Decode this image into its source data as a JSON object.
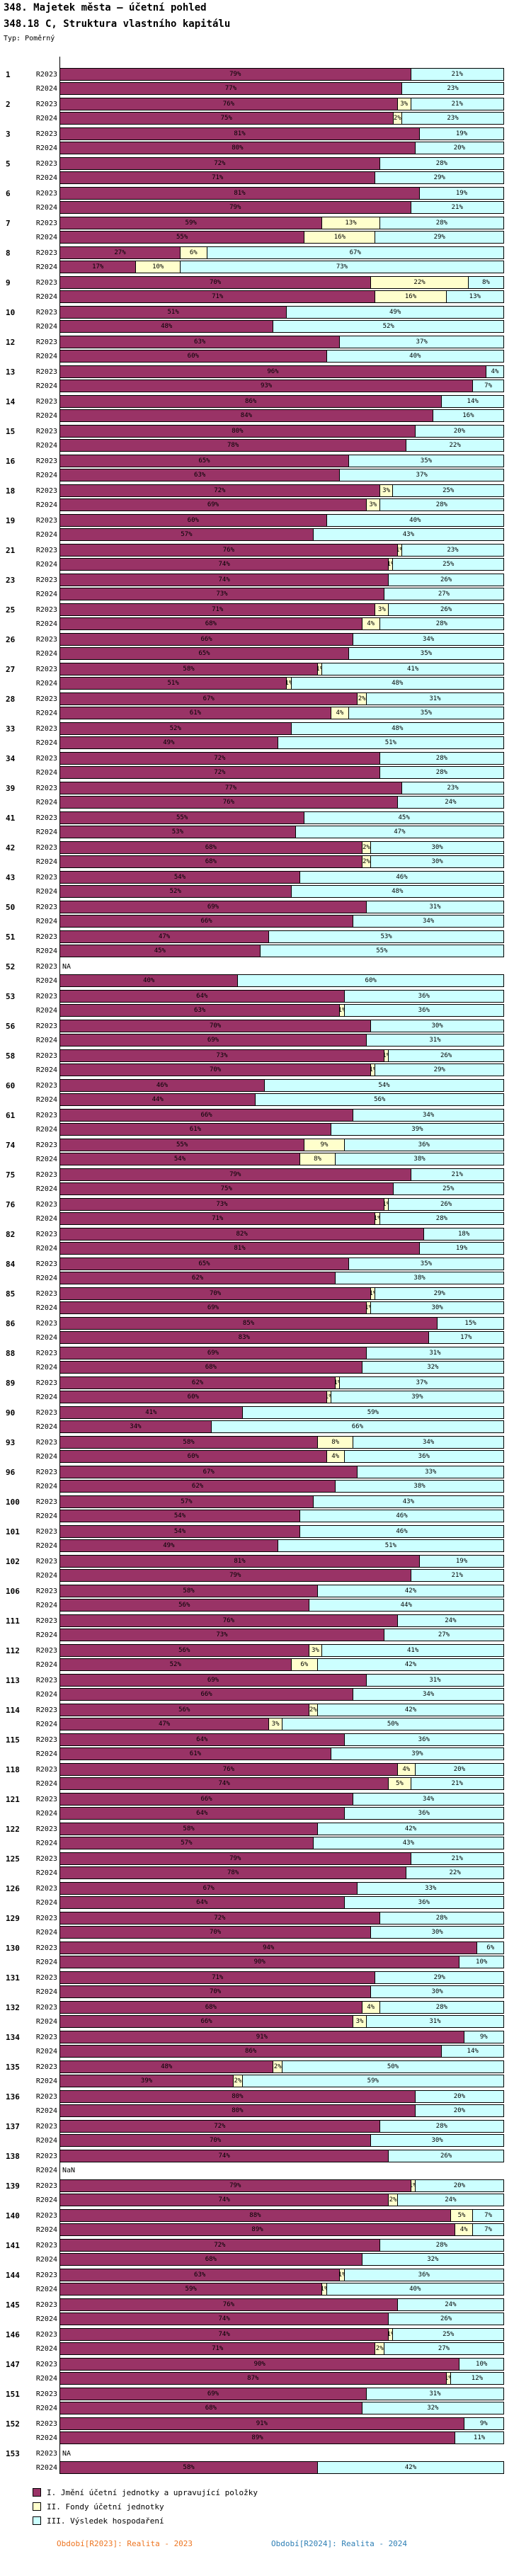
{
  "header": {
    "title": "348. Majetek města – účetní pohled",
    "subtitle": "348.18 C, Struktura vlastního kapitálu",
    "type_label": "Typ: Poměrný"
  },
  "chart_data": {
    "type": "bar",
    "orientation": "horizontal",
    "stacked": true,
    "unit": "%",
    "x_max": 100,
    "series_labels": [
      "R2023",
      "R2024"
    ],
    "segment_names": [
      "I. Jmění účetní jednotky a upravující položky",
      "II. Fondy účetní jednotky",
      "III. Výsledek hospodaření"
    ],
    "colors": {
      "segment_1": "#993366",
      "segment_2": "#FFFFCC",
      "segment_3": "#CCFFFF",
      "border": "#000000"
    },
    "rows": [
      {
        "num": "1",
        "r2023": [
          79,
          0,
          21
        ],
        "r2024": [
          77,
          0,
          23
        ]
      },
      {
        "num": "2",
        "r2023": [
          76,
          3,
          21
        ],
        "r2024": [
          75,
          2,
          23
        ]
      },
      {
        "num": "3",
        "r2023": [
          81,
          0,
          19
        ],
        "r2024": [
          80,
          0,
          20
        ]
      },
      {
        "num": "5",
        "r2023": [
          72,
          0,
          28
        ],
        "r2024": [
          71,
          0,
          29
        ]
      },
      {
        "num": "6",
        "r2023": [
          81,
          0,
          19
        ],
        "r2024": [
          79,
          0,
          21
        ]
      },
      {
        "num": "7",
        "r2023": [
          59,
          13,
          28
        ],
        "r2024": [
          55,
          16,
          29
        ]
      },
      {
        "num": "8",
        "r2023": [
          27,
          6,
          67
        ],
        "r2024": [
          17,
          10,
          73
        ]
      },
      {
        "num": "9",
        "r2023": [
          70,
          22,
          8
        ],
        "r2024": [
          71,
          16,
          13
        ]
      },
      {
        "num": "10",
        "r2023": [
          51,
          0,
          49
        ],
        "r2024": [
          48,
          0,
          52
        ]
      },
      {
        "num": "12",
        "r2023": [
          63,
          0,
          37
        ],
        "r2024": [
          60,
          0,
          40
        ]
      },
      {
        "num": "13",
        "r2023": [
          96,
          0,
          4
        ],
        "r2024": [
          93,
          0,
          7
        ]
      },
      {
        "num": "14",
        "r2023": [
          86,
          0,
          14
        ],
        "r2024": [
          84,
          0,
          16
        ]
      },
      {
        "num": "15",
        "r2023": [
          80,
          0,
          20
        ],
        "r2024": [
          78,
          0,
          22
        ]
      },
      {
        "num": "16",
        "r2023": [
          65,
          0,
          35
        ],
        "r2024": [
          63,
          0,
          37
        ]
      },
      {
        "num": "18",
        "r2023": [
          72,
          3,
          25
        ],
        "r2024": [
          69,
          3,
          28
        ]
      },
      {
        "num": "19",
        "r2023": [
          60,
          0,
          40
        ],
        "r2024": [
          57,
          0,
          43
        ]
      },
      {
        "num": "21",
        "r2023": [
          76,
          1,
          23
        ],
        "r2024": [
          74,
          1,
          25
        ]
      },
      {
        "num": "23",
        "r2023": [
          74,
          0,
          26
        ],
        "r2024": [
          73,
          0,
          27
        ]
      },
      {
        "num": "25",
        "r2023": [
          71,
          3,
          26
        ],
        "r2024": [
          68,
          4,
          28
        ]
      },
      {
        "num": "26",
        "r2023": [
          66,
          0,
          34
        ],
        "r2024": [
          65,
          0,
          35
        ]
      },
      {
        "num": "27",
        "r2023": [
          58,
          1,
          41
        ],
        "r2024": [
          51,
          1,
          48
        ]
      },
      {
        "num": "28",
        "r2023": [
          67,
          2,
          31
        ],
        "r2024": [
          61,
          4,
          35
        ]
      },
      {
        "num": "33",
        "r2023": [
          52,
          0,
          48
        ],
        "r2024": [
          49,
          0,
          51
        ]
      },
      {
        "num": "34",
        "r2023": [
          72,
          0,
          28
        ],
        "r2024": [
          72,
          0,
          28
        ]
      },
      {
        "num": "39",
        "r2023": [
          77,
          0,
          23
        ],
        "r2024": [
          76,
          0,
          24
        ]
      },
      {
        "num": "41",
        "r2023": [
          55,
          0,
          45
        ],
        "r2024": [
          53,
          0,
          47
        ]
      },
      {
        "num": "42",
        "r2023": [
          68,
          2,
          30
        ],
        "r2024": [
          68,
          2,
          30
        ]
      },
      {
        "num": "43",
        "r2023": [
          54,
          0,
          46
        ],
        "r2024": [
          52,
          0,
          48
        ]
      },
      {
        "num": "50",
        "r2023": [
          69,
          0,
          31
        ],
        "r2024": [
          66,
          0,
          34
        ]
      },
      {
        "num": "51",
        "r2023": [
          47,
          0,
          53
        ],
        "r2024": [
          45,
          0,
          55
        ]
      },
      {
        "num": "52",
        "r2023": "NA",
        "r2024": [
          40,
          0,
          60
        ]
      },
      {
        "num": "53",
        "r2023": [
          64,
          0,
          36
        ],
        "r2024": [
          63,
          1,
          36
        ]
      },
      {
        "num": "56",
        "r2023": [
          70,
          0,
          30
        ],
        "r2024": [
          69,
          0,
          31
        ]
      },
      {
        "num": "58",
        "r2023": [
          73,
          1,
          26
        ],
        "r2024": [
          70,
          1,
          29
        ]
      },
      {
        "num": "60",
        "r2023": [
          46,
          0,
          54
        ],
        "r2024": [
          44,
          0,
          56
        ]
      },
      {
        "num": "61",
        "r2023": [
          66,
          0,
          34
        ],
        "r2024": [
          61,
          0,
          39
        ]
      },
      {
        "num": "74",
        "r2023": [
          55,
          9,
          36
        ],
        "r2024": [
          54,
          8,
          38
        ]
      },
      {
        "num": "75",
        "r2023": [
          79,
          0,
          21
        ],
        "r2024": [
          75,
          0,
          25
        ]
      },
      {
        "num": "76",
        "r2023": [
          73,
          1,
          26
        ],
        "r2024": [
          71,
          1,
          28
        ]
      },
      {
        "num": "82",
        "r2023": [
          82,
          0,
          18
        ],
        "r2024": [
          81,
          0,
          19
        ]
      },
      {
        "num": "84",
        "r2023": [
          65,
          0,
          35
        ],
        "r2024": [
          62,
          0,
          38
        ]
      },
      {
        "num": "85",
        "r2023": [
          70,
          1,
          29
        ],
        "r2024": [
          69,
          1,
          30
        ]
      },
      {
        "num": "86",
        "r2023": [
          85,
          0,
          15
        ],
        "r2024": [
          83,
          0,
          17
        ]
      },
      {
        "num": "88",
        "r2023": [
          69,
          0,
          31
        ],
        "r2024": [
          68,
          0,
          32
        ]
      },
      {
        "num": "89",
        "r2023": [
          62,
          1,
          37
        ],
        "r2024": [
          60,
          1,
          39
        ]
      },
      {
        "num": "90",
        "r2023": [
          41,
          0,
          59
        ],
        "r2024": [
          34,
          0,
          66
        ]
      },
      {
        "num": "93",
        "r2023": [
          58,
          8,
          34
        ],
        "r2024": [
          60,
          4,
          36
        ]
      },
      {
        "num": "96",
        "r2023": [
          67,
          0,
          33
        ],
        "r2024": [
          62,
          0,
          38
        ]
      },
      {
        "num": "100",
        "r2023": [
          57,
          0,
          43
        ],
        "r2024": [
          54,
          0,
          46
        ]
      },
      {
        "num": "101",
        "r2023": [
          54,
          0,
          46
        ],
        "r2024": [
          49,
          0,
          51
        ]
      },
      {
        "num": "102",
        "r2023": [
          81,
          0,
          19
        ],
        "r2024": [
          79,
          0,
          21
        ]
      },
      {
        "num": "106",
        "r2023": [
          58,
          0,
          42
        ],
        "r2024": [
          56,
          0,
          44
        ]
      },
      {
        "num": "111",
        "r2023": [
          76,
          0,
          24
        ],
        "r2024": [
          73,
          0,
          27
        ]
      },
      {
        "num": "112",
        "r2023": [
          56,
          3,
          41
        ],
        "r2024": [
          52,
          6,
          42
        ]
      },
      {
        "num": "113",
        "r2023": [
          69,
          0,
          31
        ],
        "r2024": [
          66,
          0,
          34
        ]
      },
      {
        "num": "114",
        "r2023": [
          56,
          2,
          42
        ],
        "r2024": [
          47,
          3,
          50
        ]
      },
      {
        "num": "115",
        "r2023": [
          64,
          0,
          36
        ],
        "r2024": [
          61,
          0,
          39
        ]
      },
      {
        "num": "118",
        "r2023": [
          76,
          4,
          20
        ],
        "r2024": [
          74,
          5,
          21
        ]
      },
      {
        "num": "121",
        "r2023": [
          66,
          0,
          34
        ],
        "r2024": [
          64,
          0,
          36
        ]
      },
      {
        "num": "122",
        "r2023": [
          58,
          0,
          42
        ],
        "r2024": [
          57,
          0,
          43
        ]
      },
      {
        "num": "125",
        "r2023": [
          79,
          0,
          21
        ],
        "r2024": [
          78,
          0,
          22
        ]
      },
      {
        "num": "126",
        "r2023": [
          67,
          0,
          33
        ],
        "r2024": [
          64,
          0,
          36
        ]
      },
      {
        "num": "129",
        "r2023": [
          72,
          0,
          28
        ],
        "r2024": [
          70,
          0,
          30
        ]
      },
      {
        "num": "130",
        "r2023": [
          94,
          0,
          6
        ],
        "r2024": [
          90,
          0,
          10
        ]
      },
      {
        "num": "131",
        "r2023": [
          71,
          0,
          29
        ],
        "r2024": [
          70,
          0,
          30
        ]
      },
      {
        "num": "132",
        "r2023": [
          68,
          4,
          28
        ],
        "r2024": [
          66,
          3,
          31
        ]
      },
      {
        "num": "134",
        "r2023": [
          91,
          0,
          9
        ],
        "r2024": [
          86,
          0,
          14
        ]
      },
      {
        "num": "135",
        "r2023": [
          48,
          2,
          50
        ],
        "r2024": [
          39,
          2,
          59
        ]
      },
      {
        "num": "136",
        "r2023": [
          80,
          0,
          20
        ],
        "r2024": [
          80,
          0,
          20
        ]
      },
      {
        "num": "137",
        "r2023": [
          72,
          0,
          28
        ],
        "r2024": [
          70,
          0,
          30
        ]
      },
      {
        "num": "138",
        "r2023": [
          74,
          0,
          26
        ],
        "r2024": "NaN"
      },
      {
        "num": "139",
        "r2023": [
          79,
          1,
          20
        ],
        "r2024": [
          74,
          2,
          24
        ]
      },
      {
        "num": "140",
        "r2023": [
          88,
          5,
          7
        ],
        "r2024": [
          89,
          4,
          7
        ]
      },
      {
        "num": "141",
        "r2023": [
          72,
          0,
          28
        ],
        "r2024": [
          68,
          0,
          32
        ]
      },
      {
        "num": "144",
        "r2023": [
          63,
          1,
          36
        ],
        "r2024": [
          59,
          1,
          40
        ]
      },
      {
        "num": "145",
        "r2023": [
          76,
          0,
          24
        ],
        "r2024": [
          74,
          0,
          26
        ]
      },
      {
        "num": "146",
        "r2023": [
          74,
          1,
          25
        ],
        "r2024": [
          71,
          2,
          27
        ]
      },
      {
        "num": "147",
        "r2023": [
          90,
          0,
          10
        ],
        "r2024": [
          87,
          1,
          12
        ]
      },
      {
        "num": "151",
        "r2023": [
          69,
          0,
          31
        ],
        "r2024": [
          68,
          0,
          32
        ]
      },
      {
        "num": "152",
        "r2023": [
          91,
          0,
          9
        ],
        "r2024": [
          89,
          0,
          11
        ]
      },
      {
        "num": "153",
        "r2023": "NA",
        "r2024": [
          58,
          0,
          42
        ]
      }
    ]
  },
  "legend": {
    "items": [
      {
        "label": "I. Jmění účetní jednotky a upravující položky",
        "color": "#993366"
      },
      {
        "label": "II. Fondy účetní jednotky",
        "color": "#FFFFCC"
      },
      {
        "label": "III. Výsledek hospodaření",
        "color": "#CCFFFF"
      }
    ]
  },
  "footer": {
    "r2023_label": "Období[R2023]: Realita - 2023",
    "r2023_color": "#EE7622",
    "r2024_label": "Období[R2024]: Realita - 2024",
    "r2024_color": "#2E7FB5"
  }
}
